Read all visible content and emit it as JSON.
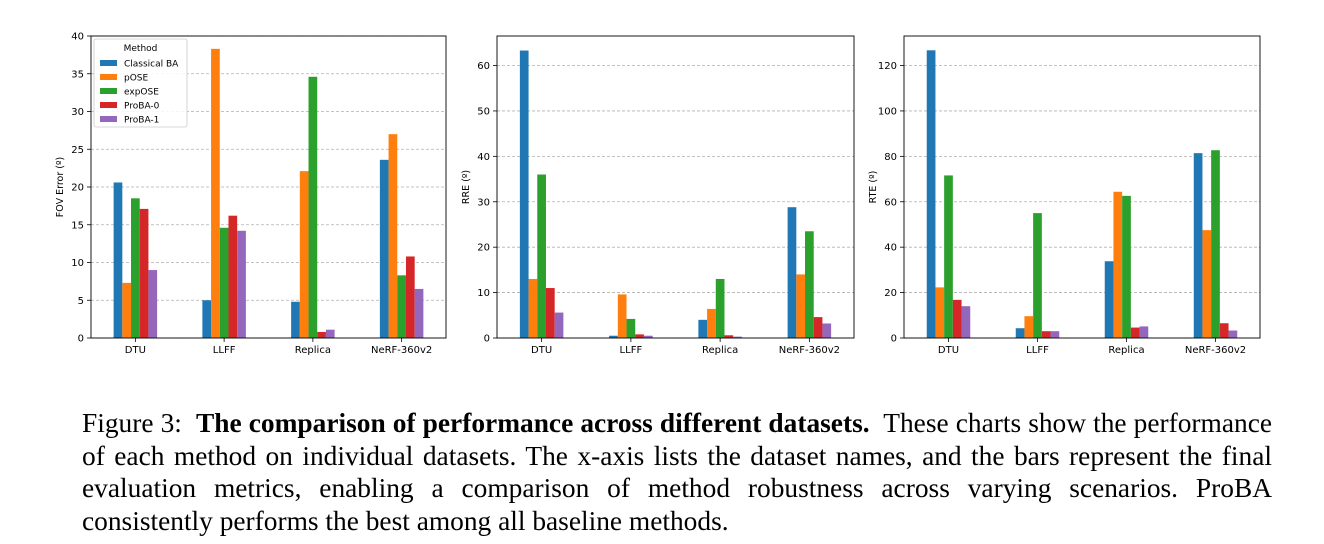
{
  "chart_data": [
    {
      "type": "bar",
      "categories": [
        "DTU",
        "LLFF",
        "Replica",
        "NeRF-360v2"
      ],
      "ylabel": "FOV Error (º)",
      "xlabel": "",
      "ylim": [
        0,
        40
      ],
      "yticks": [
        0,
        5,
        10,
        15,
        20,
        25,
        30,
        35,
        40
      ],
      "grid": "horizontal dashed",
      "legend": {
        "title": "Method",
        "placement": "top-left"
      },
      "series": [
        {
          "name": "Classical BA",
          "color": "#1f77b4",
          "values": [
            20.6,
            5.0,
            4.8,
            23.6
          ]
        },
        {
          "name": "pOSE",
          "color": "#ff7f0e",
          "values": [
            7.3,
            38.3,
            22.1,
            27.0
          ]
        },
        {
          "name": "expOSE",
          "color": "#2ca02c",
          "values": [
            18.5,
            14.6,
            34.6,
            8.3
          ]
        },
        {
          "name": "ProBA-0",
          "color": "#d62728",
          "values": [
            17.1,
            16.2,
            0.8,
            10.8
          ]
        },
        {
          "name": "ProBA-1",
          "color": "#9467bd",
          "values": [
            9.0,
            14.2,
            1.1,
            6.5
          ]
        }
      ]
    },
    {
      "type": "bar",
      "categories": [
        "DTU",
        "LLFF",
        "Replica",
        "NeRF-360v2"
      ],
      "ylabel": "RRE (º)",
      "xlabel": "",
      "ylim": [
        0,
        66.5
      ],
      "yticks": [
        0,
        10,
        20,
        30,
        40,
        50,
        60
      ],
      "grid": "horizontal dashed",
      "series": [
        {
          "name": "Classical BA",
          "color": "#1f77b4",
          "values": [
            63.3,
            0.5,
            4.0,
            28.8
          ]
        },
        {
          "name": "pOSE",
          "color": "#ff7f0e",
          "values": [
            13.0,
            9.6,
            6.4,
            14.0
          ]
        },
        {
          "name": "expOSE",
          "color": "#2ca02c",
          "values": [
            36.0,
            4.2,
            13.0,
            23.5
          ]
        },
        {
          "name": "ProBA-0",
          "color": "#d62728",
          "values": [
            11.0,
            0.8,
            0.6,
            4.6
          ]
        },
        {
          "name": "ProBA-1",
          "color": "#9467bd",
          "values": [
            5.6,
            0.5,
            0.3,
            3.2
          ]
        }
      ]
    },
    {
      "type": "bar",
      "categories": [
        "DTU",
        "LLFF",
        "Replica",
        "NeRF-360v2"
      ],
      "ylabel": "RTE (º)",
      "xlabel": "",
      "ylim": [
        0,
        133
      ],
      "yticks": [
        0,
        20,
        40,
        60,
        80,
        100,
        120
      ],
      "grid": "horizontal dashed",
      "series": [
        {
          "name": "Classical BA",
          "color": "#1f77b4",
          "values": [
            126.7,
            4.3,
            33.8,
            81.4
          ]
        },
        {
          "name": "pOSE",
          "color": "#ff7f0e",
          "values": [
            22.3,
            9.6,
            64.4,
            47.5
          ]
        },
        {
          "name": "expOSE",
          "color": "#2ca02c",
          "values": [
            71.6,
            55.0,
            62.6,
            82.7
          ]
        },
        {
          "name": "ProBA-0",
          "color": "#d62728",
          "values": [
            16.8,
            3.0,
            4.6,
            6.5
          ]
        },
        {
          "name": "ProBA-1",
          "color": "#9467bd",
          "values": [
            14.0,
            3.0,
            5.1,
            3.3
          ]
        }
      ]
    }
  ],
  "caption": {
    "label": "Figure 3:",
    "title": "The comparison of performance across different datasets.",
    "text": "These charts show the performance of each method on individual datasets. The x-axis lists the dataset names, and the bars represent the final evaluation metrics, enabling a comparison of method robustness across varying scenarios. ProBA consistently performs the best among all baseline methods."
  }
}
